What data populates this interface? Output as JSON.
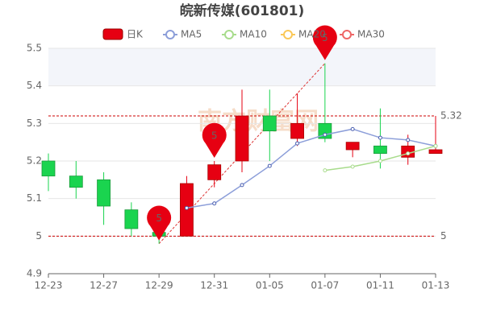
{
  "chart_data": {
    "type": "candlestick",
    "title": "皖新传媒(601801)",
    "watermark": "南方财富网",
    "categories": [
      "12-23",
      null,
      "12-27",
      null,
      "12-29",
      null,
      "12-31",
      null,
      "01-05",
      null,
      "01-07",
      null,
      "01-11",
      null,
      "01-13"
    ],
    "candle_name": "日K",
    "up_color": "#e60012",
    "down_color": "#1ad44f",
    "open": [
      5.2,
      5.16,
      5.15,
      5.07,
      5.01,
      5.0,
      5.15,
      5.2,
      5.32,
      5.26,
      5.3,
      5.23,
      5.24,
      5.21,
      5.22
    ],
    "close": [
      5.16,
      5.13,
      5.08,
      5.02,
      5.0,
      5.14,
      5.19,
      5.32,
      5.28,
      5.3,
      5.26,
      5.25,
      5.22,
      5.24,
      5.23
    ],
    "high": [
      5.22,
      5.2,
      5.17,
      5.09,
      5.02,
      5.16,
      5.2,
      5.39,
      5.39,
      5.38,
      5.46,
      5.25,
      5.34,
      5.27,
      5.32
    ],
    "low": [
      5.12,
      5.1,
      5.03,
      5.0,
      4.98,
      5.0,
      5.13,
      5.17,
      5.2,
      5.24,
      5.25,
      5.21,
      5.18,
      5.19,
      5.22
    ],
    "series": [
      {
        "name": "MA5",
        "color": "#8c9ed9",
        "values": [
          null,
          null,
          null,
          null,
          null,
          5.075,
          5.087,
          5.136,
          5.187,
          5.247,
          5.27,
          5.285,
          5.262,
          5.256,
          5.24
        ]
      },
      {
        "name": "MA10",
        "color": "#a8dc8c",
        "values": [
          null,
          null,
          null,
          null,
          null,
          null,
          null,
          null,
          null,
          null,
          5.175,
          5.185,
          5.2,
          5.22,
          5.24
        ]
      },
      {
        "name": "MA20",
        "color": "#fac858",
        "values": [
          null,
          null,
          null,
          null,
          null,
          null,
          null,
          null,
          null,
          null,
          null,
          null,
          null,
          null,
          null
        ]
      },
      {
        "name": "MA30",
        "color": "#ee6666",
        "values": [
          null,
          null,
          null,
          null,
          null,
          null,
          null,
          null,
          null,
          null,
          null,
          null,
          null,
          null,
          null
        ]
      }
    ],
    "ref_lines": [
      {
        "value": 5.32,
        "label": "5.32"
      },
      {
        "value": 5,
        "label": "5"
      }
    ],
    "pins": [
      {
        "label": "5",
        "index": 4,
        "value": 4.98
      },
      {
        "label": "5",
        "index": 6,
        "value": 5.2
      },
      {
        "label": "5",
        "index": 10,
        "value": 5.46
      }
    ],
    "ylim": [
      4.9,
      5.5
    ],
    "yticks": [
      4.9,
      5,
      5.1,
      5.2,
      5.3,
      5.4,
      5.5
    ],
    "grid": true
  }
}
